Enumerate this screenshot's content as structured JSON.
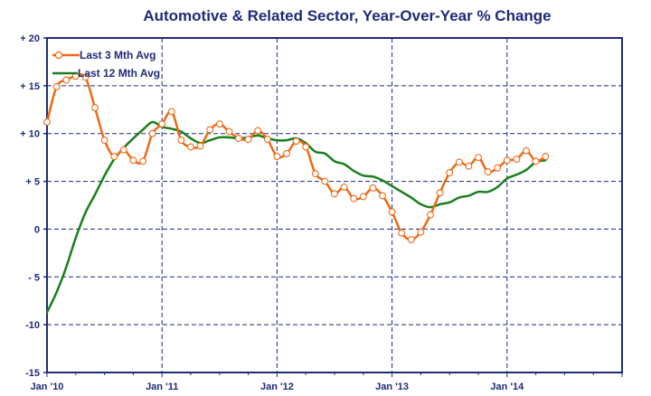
{
  "chart_data": {
    "type": "line",
    "title": "Automotive & Related Sector, Year-Over-Year % Change",
    "xlabel": "",
    "ylabel": "",
    "x_tick_labels": [
      "Jan '10",
      "Jan '11",
      "Jan '12",
      "Jan '13",
      "Jan '14"
    ],
    "y_tick_labels": [
      "+ 20",
      "+ 15",
      "+ 10",
      "+ 5",
      "0",
      "- 5",
      "-10",
      "-15"
    ],
    "y_ticks": [
      20,
      15,
      10,
      5,
      0,
      -5,
      -10,
      -15
    ],
    "ylim": [
      -15,
      20
    ],
    "xlim_months": [
      0,
      60
    ],
    "grid": true,
    "legend_position": "top-left",
    "colors": {
      "title": "#1f2a7a",
      "axis": "#1f2a7a",
      "grid": "#1f2a7a",
      "series_3m": "#ee6a16",
      "series_12m": "#18801c"
    },
    "series": [
      {
        "name": "Last 3 Mth Avg",
        "marker": "circle",
        "values": [
          11.2,
          14.9,
          15.6,
          16.0,
          15.9,
          12.7,
          9.3,
          7.6,
          8.3,
          7.2,
          7.1,
          10.0,
          11.0,
          12.3,
          9.3,
          8.6,
          8.7,
          10.4,
          11.0,
          10.2,
          9.5,
          9.4,
          10.3,
          9.4,
          7.6,
          7.9,
          9.2,
          8.6,
          5.8,
          5.0,
          3.7,
          4.4,
          3.2,
          3.4,
          4.3,
          3.5,
          1.8,
          -0.4,
          -1.1,
          -0.3,
          1.5,
          3.8,
          5.9,
          7.0,
          6.6,
          7.5,
          6.0,
          6.4,
          7.2,
          7.3,
          8.2,
          7.1,
          7.6
        ]
      },
      {
        "name": "Last 12 Mth Avg",
        "marker": "none",
        "values": [
          -8.7,
          -6.6,
          -4.0,
          -0.9,
          1.7,
          3.6,
          5.6,
          7.3,
          8.5,
          9.5,
          10.4,
          11.2,
          10.7,
          10.5,
          10.2,
          9.5,
          9.0,
          9.3,
          9.6,
          9.6,
          9.5,
          9.6,
          9.8,
          9.5,
          9.3,
          9.3,
          9.5,
          9.0,
          8.1,
          7.9,
          7.1,
          6.8,
          6.1,
          5.6,
          5.5,
          5.1,
          4.5,
          3.9,
          3.3,
          2.6,
          2.3,
          2.6,
          2.8,
          3.3,
          3.5,
          3.9,
          3.9,
          4.4,
          5.3,
          5.7,
          6.2,
          7.0,
          7.2
        ]
      }
    ]
  }
}
